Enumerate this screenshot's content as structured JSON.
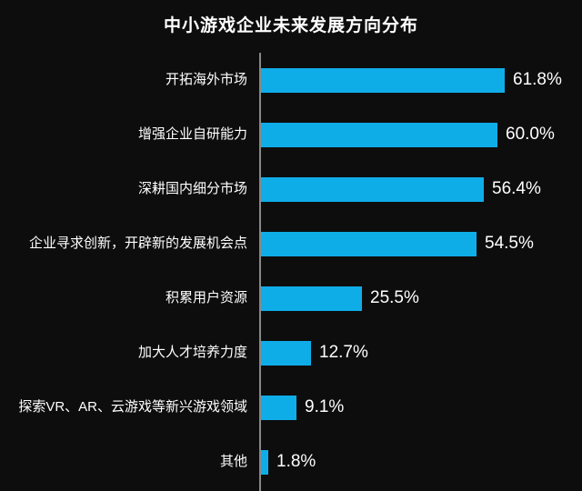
{
  "chart": {
    "title": "中小游戏企业未来发展方向分布"
  },
  "chart_data": {
    "type": "bar",
    "orientation": "horizontal",
    "title": "中小游戏企业未来发展方向分布",
    "categories": [
      "开拓海外市场",
      "增强企业自研能力",
      "深耕国内细分市场",
      "企业寻求创新，开辟新的发展机会点",
      "积累用户资源",
      "加大人才培养力度",
      "探索VR、AR、云游戏等新兴游戏领域",
      "其他"
    ],
    "values": [
      61.8,
      60.0,
      56.4,
      54.5,
      25.5,
      12.7,
      9.1,
      1.8
    ],
    "value_labels": [
      "61.8%",
      "60.0%",
      "56.4%",
      "54.5%",
      "25.5%",
      "12.7%",
      "9.1%",
      "1.8%"
    ],
    "xlabel": "",
    "ylabel": "",
    "xlim": [
      0,
      70
    ],
    "grid": false,
    "legend": false,
    "colors": {
      "bar": "#0fade8",
      "axis": "#888888",
      "background": "#0d0d0e",
      "text": "#ffffff"
    }
  }
}
